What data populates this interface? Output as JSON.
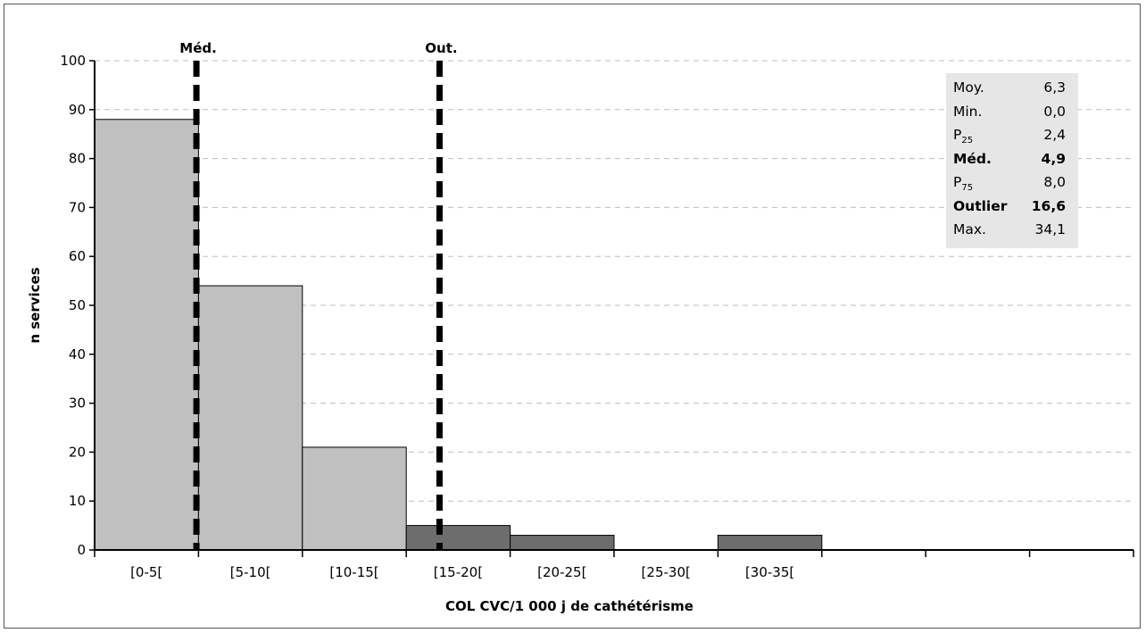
{
  "chart_data": {
    "type": "bar",
    "xlabel": "COL CVC/1 000 j de cathétérisme",
    "ylabel": "n services",
    "ylim": [
      0,
      100
    ],
    "yticks": [
      0,
      10,
      20,
      30,
      40,
      50,
      60,
      70,
      80,
      90,
      100
    ],
    "grid": "horizontal dashed",
    "categories": [
      "[0-5[",
      "[5-10[",
      "[10-15[",
      "[15-20[",
      "[20-25[",
      "[25-30[",
      "[30-35["
    ],
    "values": [
      88,
      54,
      21,
      5,
      3,
      0,
      3
    ],
    "bar_colors": [
      "#c0c0c0",
      "#c0c0c0",
      "#c0c0c0",
      "#6d6d6d",
      "#6d6d6d",
      "#6d6d6d",
      "#6d6d6d"
    ],
    "empty_slots": 3,
    "markers": [
      {
        "label": "Méd.",
        "value": 4.9
      },
      {
        "label": "Out.",
        "value": 16.6
      }
    ],
    "stats": [
      {
        "label": "Moy.",
        "sub": "",
        "value": "6,3",
        "bold": false
      },
      {
        "label": "Min.",
        "sub": "",
        "value": "0,0",
        "bold": false
      },
      {
        "label": "P",
        "sub": "25",
        "value": "2,4",
        "bold": false
      },
      {
        "label": "Méd.",
        "sub": "",
        "value": "4,9",
        "bold": true
      },
      {
        "label": "P",
        "sub": "75",
        "value": "8,0",
        "bold": false
      },
      {
        "label": "Outlier",
        "sub": "",
        "value": "16,6",
        "bold": true
      },
      {
        "label": "Max.",
        "sub": "",
        "value": "34,1",
        "bold": false
      }
    ]
  }
}
